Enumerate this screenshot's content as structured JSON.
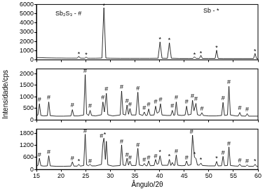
{
  "chart_data": [
    {
      "type": "line",
      "color": "#000000",
      "grid": false,
      "tick_labels": "y",
      "xlim": [
        15,
        60
      ],
      "xticks": [
        15,
        20,
        25,
        30,
        35,
        40,
        45,
        50,
        55,
        60
      ],
      "ylim": [
        0,
        6000
      ],
      "yticks": [
        0,
        1000,
        2000,
        3000,
        4000,
        5000,
        6000
      ],
      "x": [
        15,
        16,
        17,
        18,
        19,
        20,
        21,
        22,
        23,
        23.3,
        23.6,
        23.9,
        24.8,
        25.1,
        25.4,
        26,
        27,
        28.3,
        28.7,
        29.1,
        30,
        32,
        34,
        36,
        38,
        39.7,
        40.1,
        40.5,
        41.6,
        42.0,
        42.4,
        44,
        46,
        46.8,
        47.1,
        47.4,
        48.1,
        48.4,
        48.7,
        50,
        51.3,
        51.6,
        51.9,
        53,
        55,
        57,
        59.1,
        59.4,
        59.7,
        60
      ],
      "values": [
        260,
        240,
        220,
        210,
        200,
        200,
        190,
        190,
        190,
        190,
        400,
        190,
        180,
        300,
        180,
        180,
        180,
        200,
        5650,
        200,
        180,
        170,
        170,
        170,
        170,
        180,
        1950,
        180,
        170,
        1850,
        180,
        160,
        160,
        160,
        350,
        170,
        160,
        500,
        160,
        160,
        160,
        1050,
        160,
        150,
        150,
        150,
        150,
        700,
        150,
        150
      ],
      "annotations": [
        {
          "x": 21.5,
          "y": 5000,
          "text": "Sb₂S₃ - #"
        },
        {
          "x": 50.5,
          "y": 5300,
          "text": "Sb - *"
        },
        {
          "x": 23.6,
          "y": 600,
          "text": "*"
        },
        {
          "x": 25.1,
          "y": 500,
          "text": "*"
        },
        {
          "x": 28.7,
          "y": 5850,
          "text": "*"
        },
        {
          "x": 40.1,
          "y": 2200,
          "text": "*"
        },
        {
          "x": 42.0,
          "y": 2100,
          "text": "*"
        },
        {
          "x": 47.1,
          "y": 550,
          "text": "*"
        },
        {
          "x": 48.4,
          "y": 700,
          "text": "*"
        },
        {
          "x": 51.6,
          "y": 1300,
          "text": "*"
        },
        {
          "x": 59.4,
          "y": 950,
          "text": "*"
        }
      ]
    },
    {
      "type": "line",
      "color": "#000000",
      "grid": false,
      "tick_labels": "y",
      "y_label": "Intensidade/cps",
      "xlim": [
        15,
        60
      ],
      "xticks": [
        15,
        20,
        25,
        30,
        35,
        40,
        45,
        50,
        55,
        60
      ],
      "ylim": [
        0,
        2200
      ],
      "yticks": [
        0,
        500,
        1000,
        1500,
        2000
      ],
      "x": [
        15,
        15.3,
        15.6,
        15.9,
        16.5,
        17.2,
        17.5,
        17.8,
        19,
        20.5,
        22.0,
        22.3,
        22.6,
        23.5,
        24.6,
        24.9,
        25.2,
        25.6,
        25.9,
        26.2,
        27.0,
        28.2,
        28.5,
        28.8,
        29.2,
        29.5,
        30.5,
        32.0,
        32.3,
        32.6,
        33.1,
        33.4,
        33.7,
        34.0,
        34.3,
        35.2,
        35.6,
        35.9,
        36.6,
        36.9,
        37.2,
        37.5,
        37.8,
        38.1,
        38.9,
        39.2,
        39.5,
        39.9,
        40.2,
        40.5,
        41.5,
        42.3,
        42.6,
        42.9,
        43.1,
        43.4,
        43.7,
        44.5,
        45.2,
        45.5,
        45.8,
        46.4,
        46.7,
        47.0,
        47.4,
        47.7,
        48.3,
        48.6,
        48.9,
        50,
        51.5,
        52.6,
        52.9,
        53.2,
        53.8,
        54.1,
        54.4,
        55.5,
        56.0,
        56.3,
        56.6,
        57.5,
        57.8,
        58.1,
        59,
        60
      ],
      "values": [
        200,
        220,
        700,
        200,
        180,
        190,
        780,
        190,
        170,
        170,
        180,
        450,
        180,
        180,
        220,
        1950,
        260,
        200,
        420,
        200,
        180,
        230,
        780,
        350,
        1150,
        230,
        180,
        220,
        1250,
        250,
        220,
        650,
        250,
        500,
        220,
        220,
        1200,
        250,
        200,
        350,
        200,
        210,
        480,
        210,
        220,
        600,
        300,
        350,
        700,
        220,
        200,
        200,
        420,
        200,
        220,
        780,
        220,
        200,
        220,
        600,
        220,
        250,
        850,
        400,
        720,
        230,
        200,
        320,
        200,
        180,
        180,
        200,
        760,
        200,
        220,
        1450,
        220,
        180,
        180,
        330,
        180,
        170,
        280,
        170,
        170,
        170
      ],
      "annotations": [
        {
          "x": 15.6,
          "y": 870,
          "text": "#"
        },
        {
          "x": 17.5,
          "y": 950,
          "text": "#"
        },
        {
          "x": 22.3,
          "y": 620,
          "text": "#"
        },
        {
          "x": 24.9,
          "y": 2100,
          "text": "#"
        },
        {
          "x": 25.9,
          "y": 590,
          "text": "#"
        },
        {
          "x": 28.5,
          "y": 950,
          "text": "#"
        },
        {
          "x": 29.2,
          "y": 1320,
          "text": "#"
        },
        {
          "x": 32.3,
          "y": 1420,
          "text": "#"
        },
        {
          "x": 33.4,
          "y": 820,
          "text": "#"
        },
        {
          "x": 34.0,
          "y": 670,
          "text": "#"
        },
        {
          "x": 35.6,
          "y": 1370,
          "text": "#"
        },
        {
          "x": 36.9,
          "y": 520,
          "text": "#"
        },
        {
          "x": 37.8,
          "y": 650,
          "text": "#"
        },
        {
          "x": 39.2,
          "y": 770,
          "text": "#"
        },
        {
          "x": 40.2,
          "y": 870,
          "text": "#"
        },
        {
          "x": 42.6,
          "y": 590,
          "text": "#"
        },
        {
          "x": 43.4,
          "y": 950,
          "text": "#"
        },
        {
          "x": 45.5,
          "y": 770,
          "text": "#"
        },
        {
          "x": 46.7,
          "y": 1020,
          "text": "#"
        },
        {
          "x": 47.4,
          "y": 890,
          "text": "#"
        },
        {
          "x": 48.6,
          "y": 490,
          "text": "#"
        },
        {
          "x": 52.9,
          "y": 930,
          "text": "#"
        },
        {
          "x": 54.1,
          "y": 1620,
          "text": "#"
        },
        {
          "x": 56.3,
          "y": 500,
          "text": "#"
        },
        {
          "x": 57.8,
          "y": 450,
          "text": "#"
        }
      ]
    },
    {
      "type": "line",
      "color": "#000000",
      "grid": false,
      "x_label": "Ângulo/2θ",
      "xlim": [
        15,
        60
      ],
      "xticks": [
        15,
        20,
        25,
        30,
        35,
        40,
        45,
        50,
        55,
        60
      ],
      "ylim": [
        0,
        2000
      ],
      "yticks": [
        0,
        600,
        1200,
        1800
      ],
      "x": [
        15,
        15.3,
        15.6,
        15.9,
        16.5,
        17.2,
        17.5,
        17.8,
        19,
        20.5,
        22.0,
        22.3,
        22.6,
        23.3,
        23.6,
        23.9,
        24.6,
        24.9,
        25.2,
        25.6,
        25.9,
        26.2,
        27.0,
        28.2,
        28.5,
        28.7,
        29.0,
        29.2,
        29.5,
        30.5,
        32.0,
        32.3,
        32.6,
        33.1,
        33.4,
        33.7,
        34.0,
        34.3,
        35.2,
        35.6,
        35.9,
        36.6,
        36.9,
        37.2,
        37.5,
        37.8,
        38.1,
        38.9,
        39.2,
        39.5,
        39.8,
        40.1,
        40.5,
        41.7,
        42.0,
        42.3,
        42.6,
        42.9,
        43.1,
        43.4,
        43.7,
        44.5,
        45.2,
        45.5,
        45.8,
        46.4,
        46.7,
        47.1,
        47.4,
        47.7,
        48.1,
        48.4,
        48.7,
        50,
        51.3,
        51.6,
        51.9,
        52.6,
        52.9,
        53.2,
        53.8,
        54.1,
        54.4,
        55.5,
        56.0,
        56.3,
        56.6,
        57.5,
        57.8,
        58.1,
        59.1,
        59.4,
        59.7,
        60
      ],
      "values": [
        170,
        200,
        560,
        190,
        170,
        180,
        680,
        180,
        160,
        160,
        170,
        380,
        170,
        170,
        260,
        170,
        200,
        1750,
        230,
        190,
        260,
        180,
        180,
        250,
        1300,
        1550,
        500,
        1400,
        230,
        170,
        200,
        1220,
        220,
        200,
        560,
        220,
        420,
        200,
        200,
        1050,
        220,
        190,
        300,
        190,
        190,
        430,
        190,
        200,
        500,
        260,
        300,
        680,
        210,
        210,
        500,
        200,
        350,
        200,
        210,
        720,
        210,
        190,
        200,
        420,
        200,
        240,
        1700,
        600,
        550,
        220,
        220,
        320,
        200,
        180,
        180,
        400,
        180,
        190,
        650,
        190,
        200,
        1120,
        200,
        170,
        170,
        270,
        170,
        160,
        230,
        160,
        160,
        260,
        160,
        160
      ],
      "annotations": [
        {
          "x": 15.6,
          "y": 720,
          "text": "#"
        },
        {
          "x": 17.5,
          "y": 840,
          "text": "#"
        },
        {
          "x": 22.3,
          "y": 540,
          "text": "#"
        },
        {
          "x": 23.6,
          "y": 420,
          "text": "*"
        },
        {
          "x": 24.9,
          "y": 1900,
          "text": "#"
        },
        {
          "x": 25.9,
          "y": 420,
          "text": "#"
        },
        {
          "x": 28.2,
          "y": 1650,
          "text": "#"
        },
        {
          "x": 28.9,
          "y": 1720,
          "text": "*"
        },
        {
          "x": 32.3,
          "y": 1380,
          "text": "#"
        },
        {
          "x": 33.4,
          "y": 720,
          "text": "#"
        },
        {
          "x": 34.0,
          "y": 580,
          "text": "#"
        },
        {
          "x": 35.6,
          "y": 1210,
          "text": "#"
        },
        {
          "x": 36.9,
          "y": 460,
          "text": "#"
        },
        {
          "x": 37.8,
          "y": 590,
          "text": "#"
        },
        {
          "x": 39.2,
          "y": 660,
          "text": "#"
        },
        {
          "x": 40.1,
          "y": 840,
          "text": "*"
        },
        {
          "x": 42.0,
          "y": 660,
          "text": "*"
        },
        {
          "x": 43.4,
          "y": 880,
          "text": "#"
        },
        {
          "x": 45.5,
          "y": 580,
          "text": "#"
        },
        {
          "x": 46.5,
          "y": 1860,
          "text": "#"
        },
        {
          "x": 47.1,
          "y": 760,
          "text": "*"
        },
        {
          "x": 48.4,
          "y": 480,
          "text": "*"
        },
        {
          "x": 51.6,
          "y": 560,
          "text": "*"
        },
        {
          "x": 52.9,
          "y": 810,
          "text": "#"
        },
        {
          "x": 54.1,
          "y": 1280,
          "text": "#"
        },
        {
          "x": 56.3,
          "y": 430,
          "text": "#"
        },
        {
          "x": 57.8,
          "y": 390,
          "text": "#"
        },
        {
          "x": 59.4,
          "y": 420,
          "text": "*"
        }
      ]
    }
  ]
}
